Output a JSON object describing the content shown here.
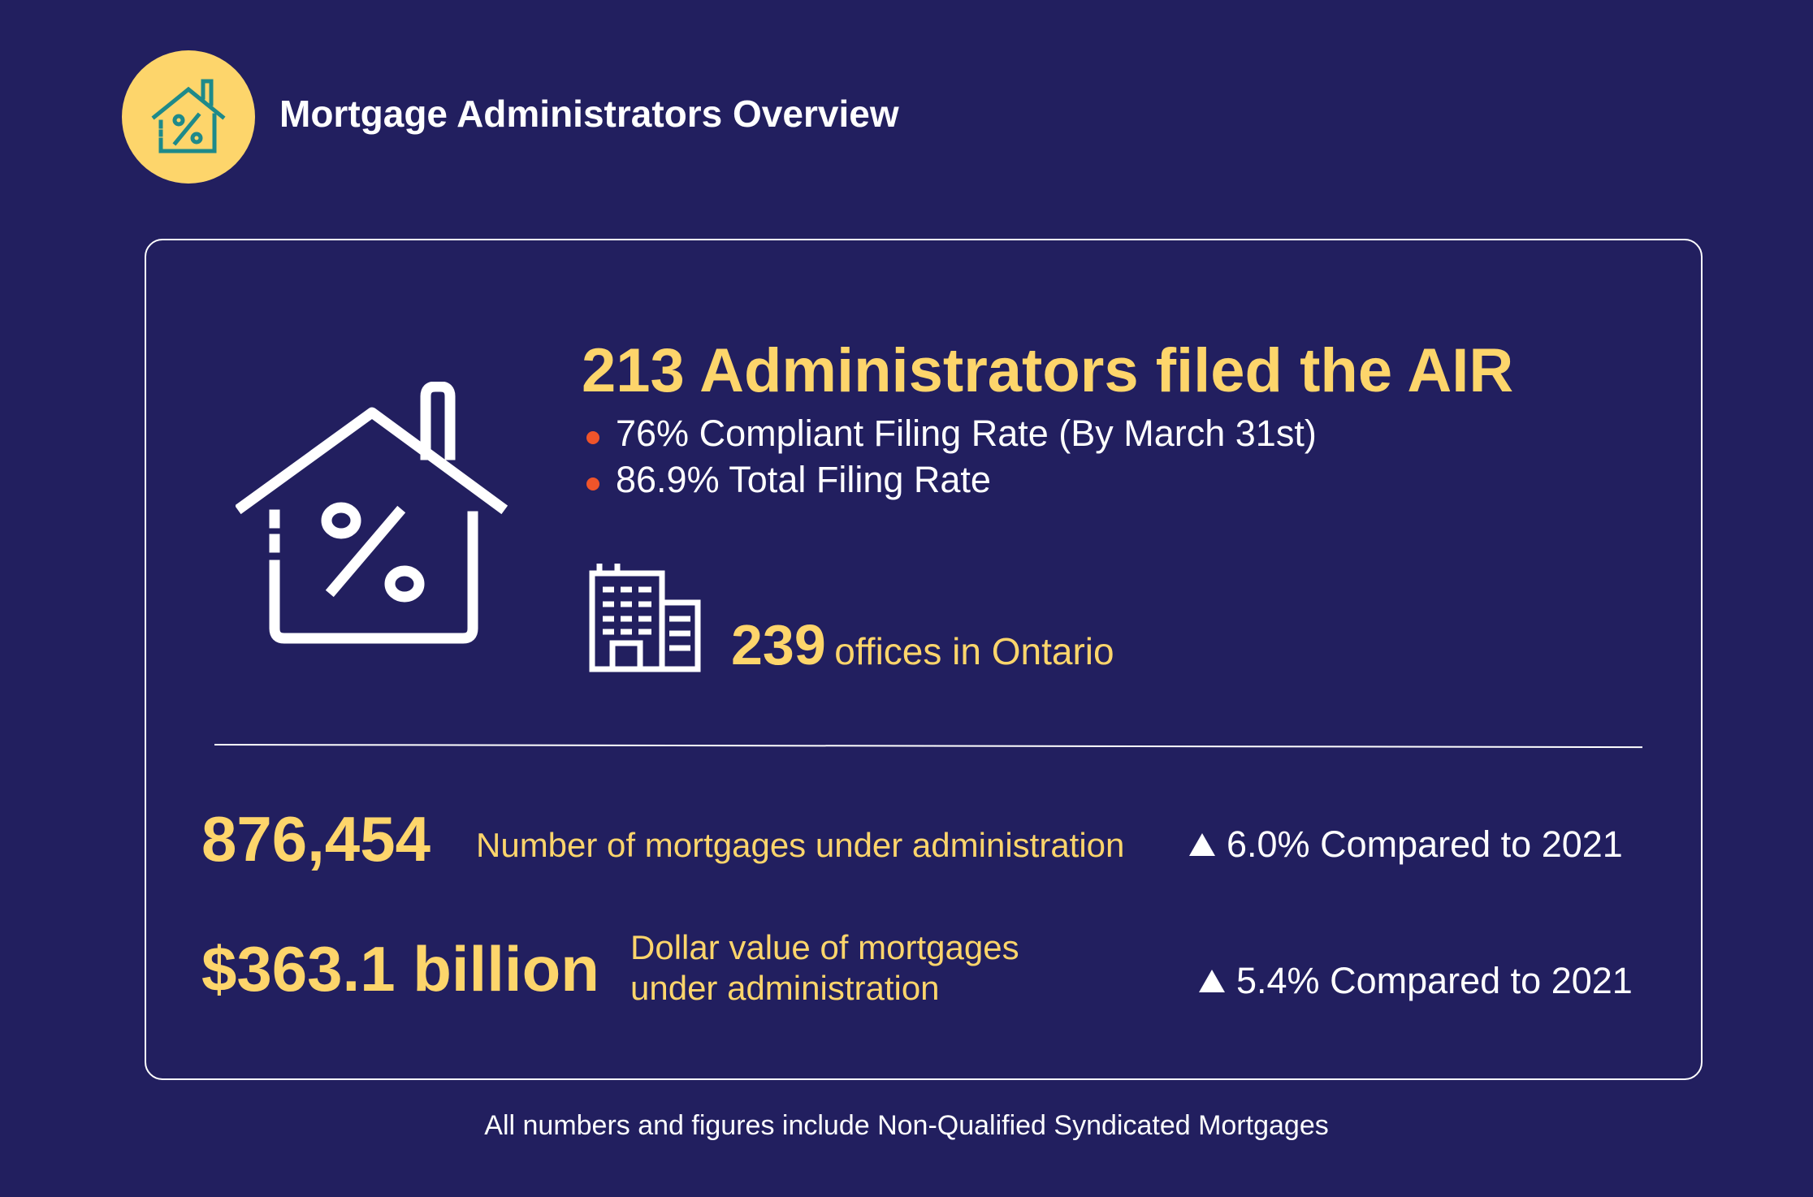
{
  "header": {
    "title": "Mortgage Administrators Overview",
    "badge_icon": "house-percent-icon",
    "badge_color": "#fdd56b",
    "badge_icon_color": "#1e8a8a"
  },
  "card": {
    "illustration_icon": "house-percent-icon",
    "headline": "213 Administrators filed the AIR",
    "bullets": [
      "76% Compliant Filing Rate (By March 31st)",
      "86.9% Total Filing Rate"
    ],
    "offices": {
      "icon": "office-building-icon",
      "number": "239",
      "label": "offices in Ontario"
    },
    "stats": [
      {
        "value": "876,454",
        "label": "Number of mortgages under administration",
        "comparison": "6.0% Compared to 2021"
      },
      {
        "value": "$363.1 billion",
        "label": "Dollar value of mortgages under administration",
        "comparison": "5.4% Compared to 2021"
      }
    ]
  },
  "footnote": "All numbers and figures include Non-Qualified Syndicated Mortgages",
  "colors": {
    "background": "#221f5f",
    "accent_yellow": "#fdd56b",
    "bullet_orange": "#f0542a",
    "text_white": "#ffffff"
  }
}
